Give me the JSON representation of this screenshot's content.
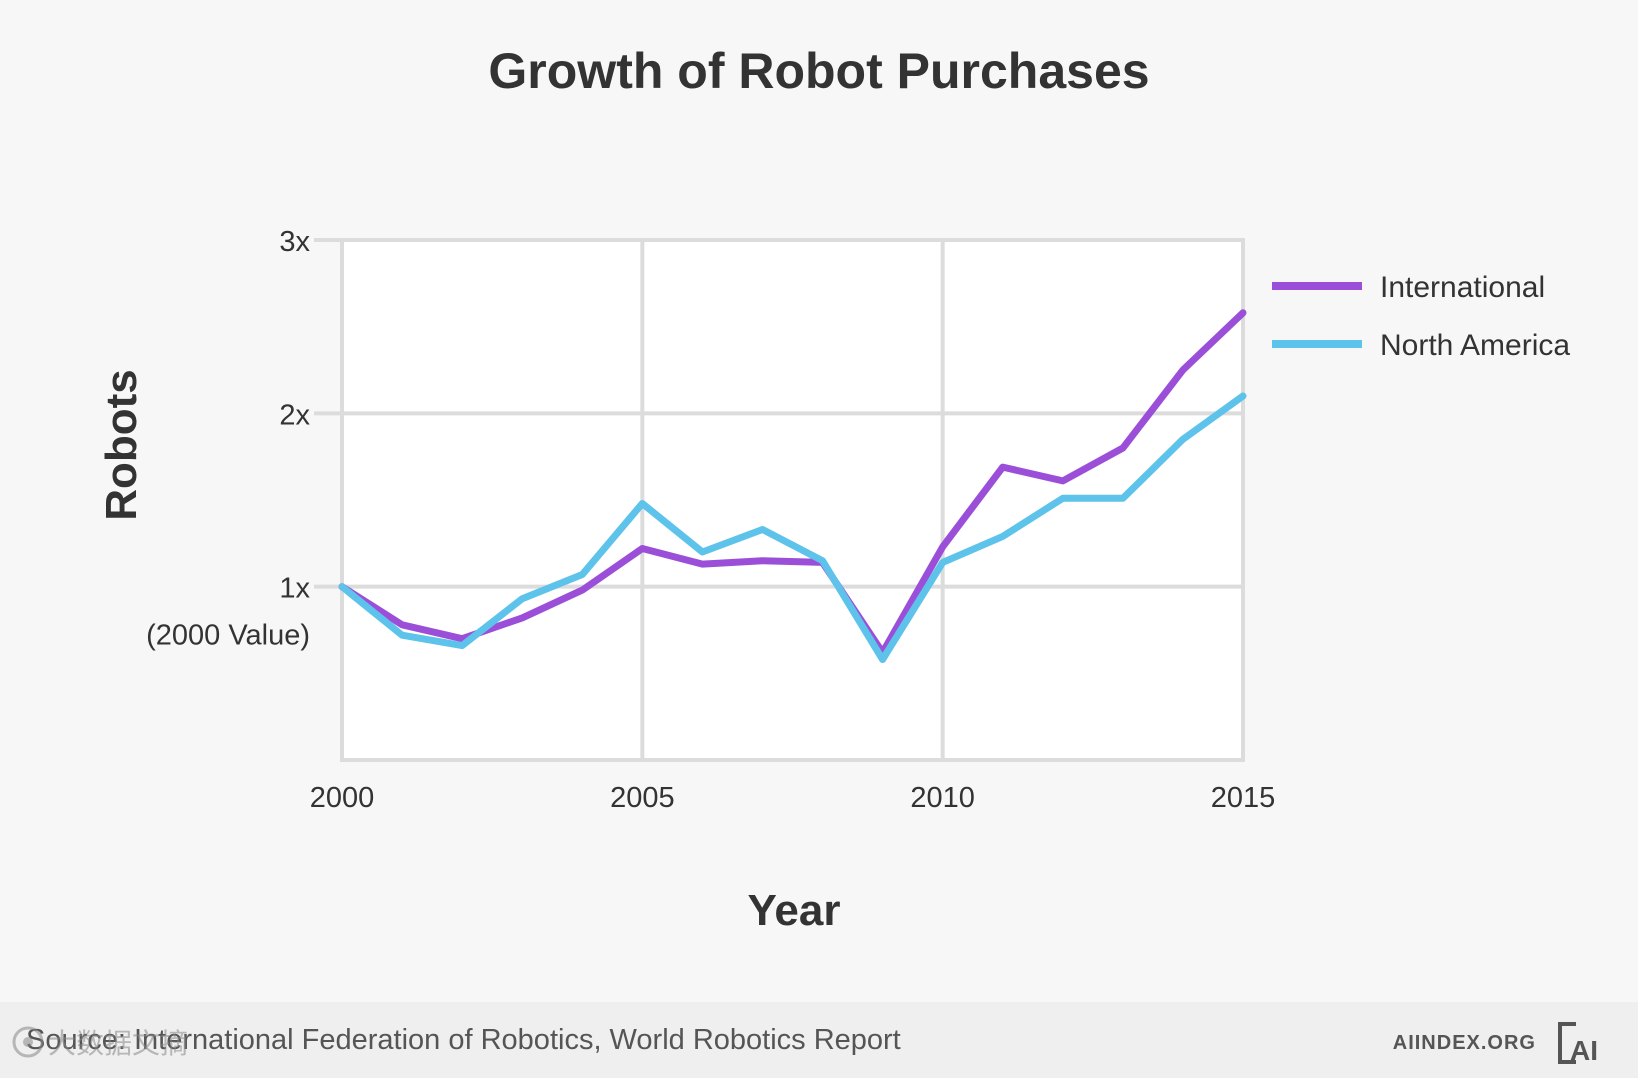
{
  "chart_data": {
    "type": "line",
    "title": "Growth of Robot Purchases",
    "xlabel": "Year",
    "ylabel": "Robots",
    "x": [
      2000,
      2001,
      2002,
      2003,
      2004,
      2005,
      2006,
      2007,
      2008,
      2009,
      2010,
      2011,
      2012,
      2013,
      2014,
      2015
    ],
    "xlim": [
      2000,
      2015
    ],
    "ylim": [
      0,
      3
    ],
    "xticks": [
      "2000",
      "2005",
      "2010",
      "2015"
    ],
    "yticks": [
      "1x",
      "2x",
      "3x"
    ],
    "ytick_note": "(2000 Value)",
    "grid": true,
    "legend_position": "right",
    "series": [
      {
        "name": "International",
        "color": "#9b4fd9",
        "values": [
          1.0,
          0.78,
          0.7,
          0.82,
          0.98,
          1.22,
          1.13,
          1.15,
          1.14,
          0.62,
          1.23,
          1.69,
          1.61,
          1.8,
          2.25,
          2.58
        ]
      },
      {
        "name": "North America",
        "color": "#5ec3ea",
        "values": [
          1.0,
          0.72,
          0.66,
          0.93,
          1.07,
          1.48,
          1.2,
          1.33,
          1.15,
          0.58,
          1.14,
          1.29,
          1.51,
          1.51,
          1.85,
          2.1
        ]
      }
    ]
  },
  "footer": {
    "source": "Source: International Federation of Robotics, World Robotics Report",
    "site": "AIINDEX.ORG",
    "logo_text": "AI"
  },
  "watermark": {
    "text": "大数据文摘"
  }
}
